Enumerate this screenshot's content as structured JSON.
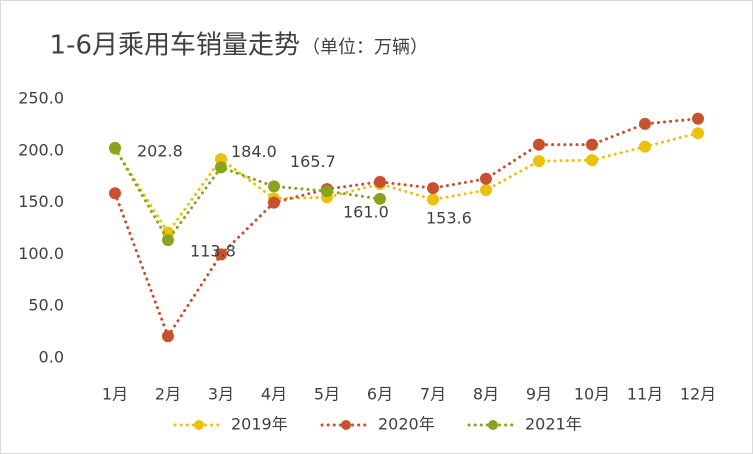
{
  "chart_data": {
    "type": "line",
    "title": "1-6月乘用车销量走势",
    "subtitle": "（单位：万辆）",
    "categories": [
      "1月",
      "2月",
      "3月",
      "4月",
      "5月",
      "6月",
      "7月",
      "8月",
      "9月",
      "10月",
      "11月",
      "12月"
    ],
    "series": [
      {
        "name": "2019年",
        "color": "#e8c20c",
        "values": [
          202,
          121,
          192,
          154,
          155,
          168,
          153,
          162,
          190,
          191,
          204,
          217
        ]
      },
      {
        "name": "2020年",
        "color": "#c9502e",
        "values": [
          159,
          21,
          100,
          150,
          163,
          170,
          164,
          173,
          206,
          206,
          226,
          231
        ]
      },
      {
        "name": "2021年",
        "color": "#8aa31f",
        "values": [
          202.8,
          113.8,
          184.0,
          165.7,
          161.0,
          153.6,
          null,
          null,
          null,
          null,
          null,
          null
        ],
        "value_labels": [
          "202.8",
          "113.8",
          "184.0",
          "165.7",
          "161.0",
          "153.6",
          null,
          null,
          null,
          null,
          null,
          null
        ]
      }
    ],
    "ylim": [
      0,
      250
    ],
    "yticks": [
      {
        "value": 0,
        "label": "0.0"
      },
      {
        "value": 50,
        "label": "50.0"
      },
      {
        "value": 100,
        "label": "100.0"
      },
      {
        "value": 150,
        "label": "150.0"
      },
      {
        "value": 200,
        "label": "200.0"
      },
      {
        "value": 250,
        "label": "250.0"
      }
    ],
    "legend": "bottom"
  }
}
